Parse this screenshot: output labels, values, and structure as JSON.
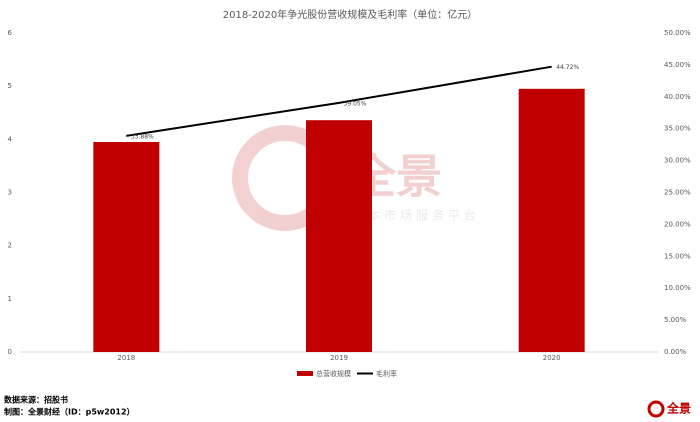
{
  "chart_data": {
    "type": "bar_line",
    "title": "2018-2020年争光股份营收规模及毛利率（单位：亿元）",
    "categories": [
      "2018",
      "2019",
      "2020"
    ],
    "series": [
      {
        "name": "总营收规模",
        "type": "bar",
        "color": "#c00000",
        "values": [
          3.95,
          4.36,
          4.95
        ]
      },
      {
        "name": "毛利率",
        "type": "line",
        "color": "#000000",
        "axis": "y2",
        "values": [
          33.88,
          39.05,
          44.72
        ],
        "value_labels": [
          "33.88%",
          "39.05%",
          "44.72%"
        ]
      }
    ],
    "ylim": [
      0,
      6
    ],
    "yticks": [
      0,
      1,
      2,
      3,
      4,
      5,
      6
    ],
    "y2lim": [
      0,
      50
    ],
    "y2ticks": [
      {
        "value": 0,
        "label": "0.00%"
      },
      {
        "value": 5,
        "label": "5.00%"
      },
      {
        "value": 10,
        "label": "10.00%"
      },
      {
        "value": 15,
        "label": "15.00%"
      },
      {
        "value": 20,
        "label": "20.00%"
      },
      {
        "value": 25,
        "label": "25.00%"
      },
      {
        "value": 30,
        "label": "30.00%"
      },
      {
        "value": 35,
        "label": "35.00%"
      },
      {
        "value": 40,
        "label": "40.00%"
      },
      {
        "value": 45,
        "label": "45.00%"
      },
      {
        "value": 50,
        "label": "50.00%"
      }
    ],
    "grid": false,
    "legend": "bottom",
    "source": "数据来源：招股书",
    "credit": "制图：全景财经（ID：p5w2012）",
    "watermark": "全景",
    "watermark_sub": "资本市场服务平台",
    "logo": "全景"
  }
}
